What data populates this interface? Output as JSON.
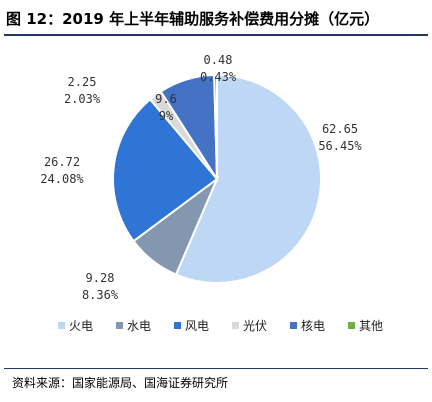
{
  "header": {
    "title": "图 12：2019 年上半年辅助服务补偿费用分摊（亿元）"
  },
  "chart_data": {
    "type": "pie",
    "title": "图 12：2019 年上半年辅助服务补偿费用分摊（亿元）",
    "unit": "亿元",
    "legend_position": "bottom",
    "start": "clockwise-from-top",
    "slices": [
      {
        "name": "火电",
        "value": 62.65,
        "percent_label": "56.45%",
        "value_label": "62.65",
        "color": "#bdd7f5"
      },
      {
        "name": "水电",
        "value": 9.28,
        "percent_label": "8.36%",
        "value_label": "9.28",
        "color": "#8497b0"
      },
      {
        "name": "风电",
        "value": 26.72,
        "percent_label": "24.08%",
        "value_label": "26.72",
        "color": "#2e75d6"
      },
      {
        "name": "光伏",
        "value": 2.25,
        "percent_label": "2.03%",
        "value_label": "2.25",
        "color": "#d9d9d9"
      },
      {
        "name": "核电",
        "value": 9.6,
        "percent_label": "9%",
        "value_label": "9.6",
        "color": "#4472c4"
      },
      {
        "name": "其他",
        "value": 0.48,
        "percent_label": "0.43%",
        "value_label": "0.48",
        "color": "#70ad47"
      }
    ]
  },
  "footer": {
    "source": "资料来源：国家能源局、国海证券研究所"
  }
}
